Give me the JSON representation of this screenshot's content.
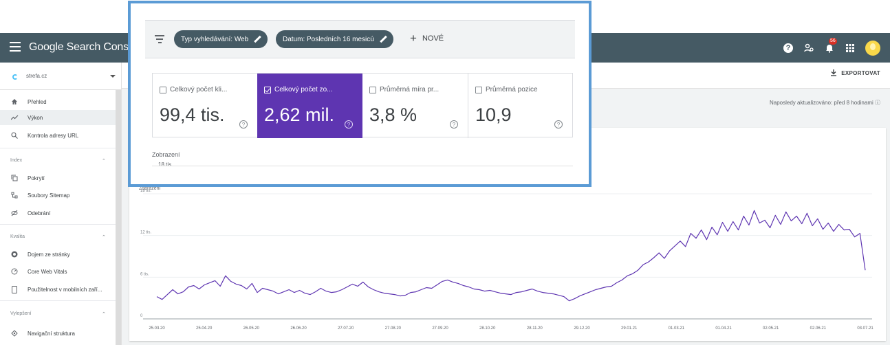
{
  "appbar": {
    "brand": "Google Search Console",
    "notification_count": "56"
  },
  "sidebar": {
    "property": "strefa.cz",
    "items_top": [
      {
        "label": "Přehled",
        "icon": "home-icon"
      },
      {
        "label": "Výkon",
        "icon": "trending-icon"
      },
      {
        "label": "Kontrola adresy URL",
        "icon": "search-icon"
      }
    ],
    "section_index": "Index",
    "items_index": [
      {
        "label": "Pokrytí",
        "icon": "copy-icon"
      },
      {
        "label": "Soubory Sitemap",
        "icon": "sitemap-icon"
      },
      {
        "label": "Odebrání",
        "icon": "removal-icon"
      }
    ],
    "section_quality": "Kvalita",
    "items_quality": [
      {
        "label": "Dojem ze stránky",
        "icon": "page-experience-icon"
      },
      {
        "label": "Core Web Vitals",
        "icon": "gauge-icon"
      },
      {
        "label": "Použitelnost v mobilních zaří...",
        "icon": "mobile-icon"
      }
    ],
    "section_enhancements": "Vylepšení",
    "items_enhancements": [
      {
        "label": "Navigační struktura",
        "icon": "breadcrumb-icon"
      }
    ]
  },
  "header": {
    "export_label": "EXPORTOVAT",
    "last_updated": "Naposledy aktualizováno: před 8 hodinami"
  },
  "filters": {
    "chip_search_type": "Typ vyhledávání: Web",
    "chip_date": "Datum: Posledních 16 mesicú",
    "new_label": "NOVÉ"
  },
  "metrics": [
    {
      "label": "Celkový počet kli...",
      "value": "99,4 tis.",
      "checked": false
    },
    {
      "label": "Celkový počet zo...",
      "value": "2,62 mil.",
      "checked": true
    },
    {
      "label": "Průměrná míra pr...",
      "value": "3,8 %",
      "checked": false
    },
    {
      "label": "Průměrná pozice",
      "value": "10,9",
      "checked": false
    }
  ],
  "overlay_chart": {
    "ylabel": "Zobrazení",
    "tick": "18 tis."
  },
  "chart_data": {
    "type": "line",
    "ylabel": "Zobrazení",
    "y_ticks": [
      "0",
      "6 tis.",
      "12 tis.",
      "18 tis."
    ],
    "ylim": [
      0,
      18000
    ],
    "x_ticks": [
      "25.03.20",
      "25.04.20",
      "26.05.20",
      "26.06.20",
      "27.07.20",
      "27.08.20",
      "27.09.20",
      "28.10.20",
      "28.11.20",
      "29.12.20",
      "29.01.21",
      "01.03.21",
      "01.04.21",
      "02.05.21",
      "02.06.21",
      "03.07.21"
    ],
    "series": [
      {
        "color": "#5e35b1",
        "values": [
          3200,
          2800,
          3500,
          4200,
          3600,
          3900,
          4600,
          4800,
          4300,
          4900,
          5200,
          5500,
          4700,
          6200,
          5400,
          5000,
          4800,
          4300,
          5100,
          3800,
          4400,
          4200,
          4000,
          3600,
          3900,
          4200,
          3800,
          4100,
          3700,
          3500,
          3900,
          4400,
          4000,
          3800,
          3900,
          4200,
          4600,
          5000,
          4700,
          5300,
          4600,
          4200,
          3900,
          3700,
          3600,
          3500,
          3300,
          3400,
          3800,
          3900,
          4200,
          4500,
          4400,
          4900,
          5400,
          5600,
          5300,
          5100,
          4800,
          4600,
          4300,
          4200,
          4000,
          4100,
          3900,
          3700,
          3600,
          3500,
          3800,
          3900,
          4100,
          4300,
          4000,
          3800,
          3700,
          3600,
          3400,
          3200,
          2600,
          2900,
          3300,
          3600,
          3900,
          4200,
          4400,
          4600,
          4700,
          5200,
          5600,
          6200,
          6500,
          7000,
          7800,
          8200,
          8800,
          9500,
          8700,
          9800,
          10500,
          11200,
          10400,
          12300,
          11600,
          12800,
          11400,
          13200,
          12100,
          13900,
          12600,
          14000,
          12800,
          14800,
          13500,
          15600,
          13800,
          14200,
          13100,
          14900,
          13600,
          15400,
          14100,
          14800,
          13700,
          15200,
          13400,
          14400,
          12900,
          13800,
          12600,
          13600,
          12800,
          12900,
          11800,
          12300,
          7000
        ]
      }
    ]
  }
}
